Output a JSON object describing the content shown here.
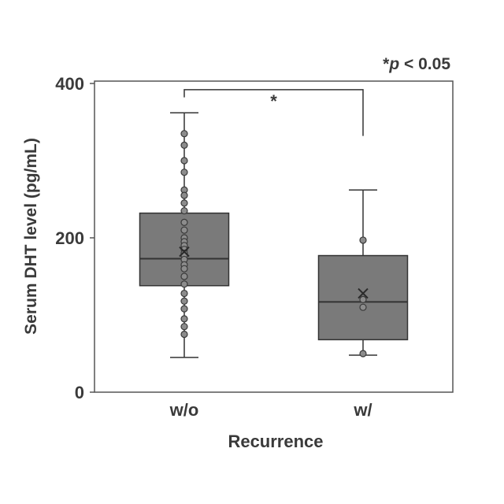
{
  "chart_data": {
    "type": "box",
    "xlabel": "Recurrence",
    "ylabel": "Serum DHT level (pg/mL)",
    "ylim": [
      0,
      400
    ],
    "yticks": [
      0,
      200,
      400
    ],
    "grid": false,
    "colors": {
      "box": "#7a7a7a",
      "line": "#333333",
      "frame": "#555555",
      "text": "#3a3a3a"
    },
    "significance": {
      "label": "*",
      "note_prefix": "*",
      "note_italic": "p",
      "note_rest": " < 0.05",
      "bar_y": 392,
      "left_end": 382,
      "right_end": 332
    },
    "groups": [
      {
        "category": "w/o",
        "whisker_low": 45,
        "q1": 138,
        "median": 173,
        "q3": 232,
        "whisker_high": 362,
        "mean": 182,
        "points": [
          335,
          320,
          300,
          285,
          262,
          255,
          245,
          235,
          220,
          210,
          200,
          195,
          190,
          185,
          180,
          177,
          172,
          165,
          160,
          150,
          140,
          128,
          118,
          108,
          95,
          85,
          75
        ]
      },
      {
        "category": "w/",
        "whisker_low": 48,
        "q1": 68,
        "median": 117,
        "q3": 177,
        "whisker_high": 262,
        "mean": 128,
        "points": [
          197,
          120,
          110,
          50
        ]
      }
    ]
  }
}
